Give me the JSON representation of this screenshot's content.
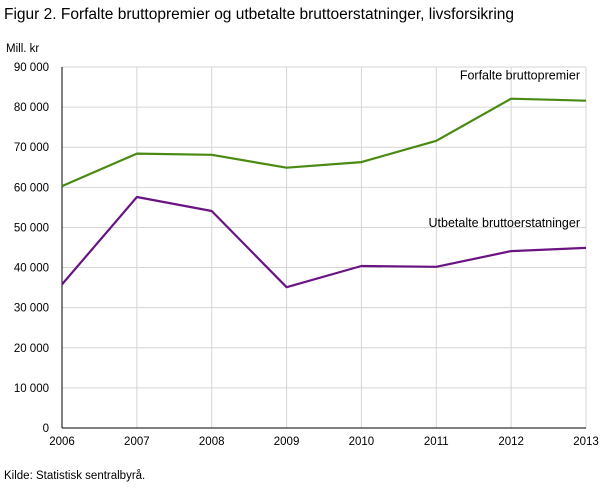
{
  "chart_data": {
    "type": "line",
    "title": "Figur 2. Forfalte bruttopremier og utbetalte bruttoerstatninger, livsforsikring",
    "ylabel": "Mill. kr",
    "xlabel": "",
    "x": [
      "2006",
      "2007",
      "2008",
      "2009",
      "2010",
      "2011",
      "2012",
      "2013"
    ],
    "ylim": [
      0,
      90000
    ],
    "yticks": [
      "0",
      "10 000",
      "20 000",
      "30 000",
      "40 000",
      "50 000",
      "60 000",
      "70 000",
      "80 000",
      "90 000"
    ],
    "grid": true,
    "series": [
      {
        "name": "Forfalte bruttopremier",
        "color": "#4a8a12",
        "values": [
          60300,
          68400,
          68100,
          64900,
          66300,
          71600,
          82100,
          81600
        ]
      },
      {
        "name": "Utbetalte bruttoerstatninger",
        "color": "#6a1483",
        "values": [
          35800,
          57600,
          54100,
          35100,
          40400,
          40200,
          44100,
          44900
        ]
      }
    ],
    "source": "Kilde: Statistisk sentralbyrå."
  }
}
